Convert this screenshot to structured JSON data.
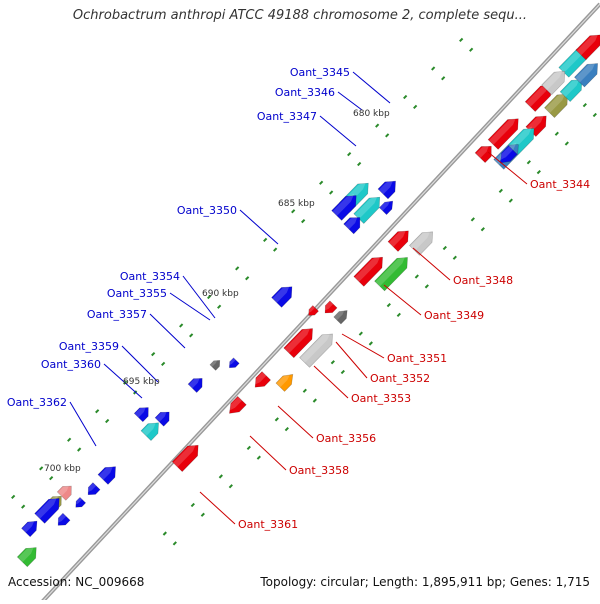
{
  "title": "Ochrobactrum anthropi ATCC 49188 chromosome 2, complete sequ...",
  "footer": {
    "accession": "Accession: NC_009668",
    "summary": "Topology: circular; Length: 1,895,911 bp; Genes: 1,715"
  },
  "colors": {
    "red": "#e8000b",
    "cyan": "#1ec8c8",
    "blue": "#0a0ae6",
    "gray": "#c8c8c8",
    "darkgray": "#666666",
    "green": "#33bb33",
    "orange": "#ff9900",
    "olive": "#999944",
    "steel": "#3a7fbf",
    "pink": "#ee8888",
    "label_blue": "#0000cc",
    "label_red": "#cc0000",
    "backbone": "#999999"
  },
  "scale_labels": [
    "680 kbp",
    "685 kbp",
    "690 kbp",
    "695 kbp",
    "700 kbp"
  ],
  "genes_left": [
    "Oant_3345",
    "Oant_3346",
    "Oant_3347",
    "Oant_3350",
    "Oant_3354",
    "Oant_3355",
    "Oant_3357",
    "Oant_3359",
    "Oant_3360",
    "Oant_3362"
  ],
  "genes_right": [
    "Oant_3344",
    "Oant_3348",
    "Oant_3349",
    "Oant_3351",
    "Oant_3352",
    "Oant_3353",
    "Oant_3356",
    "Oant_3358",
    "Oant_3361"
  ]
}
